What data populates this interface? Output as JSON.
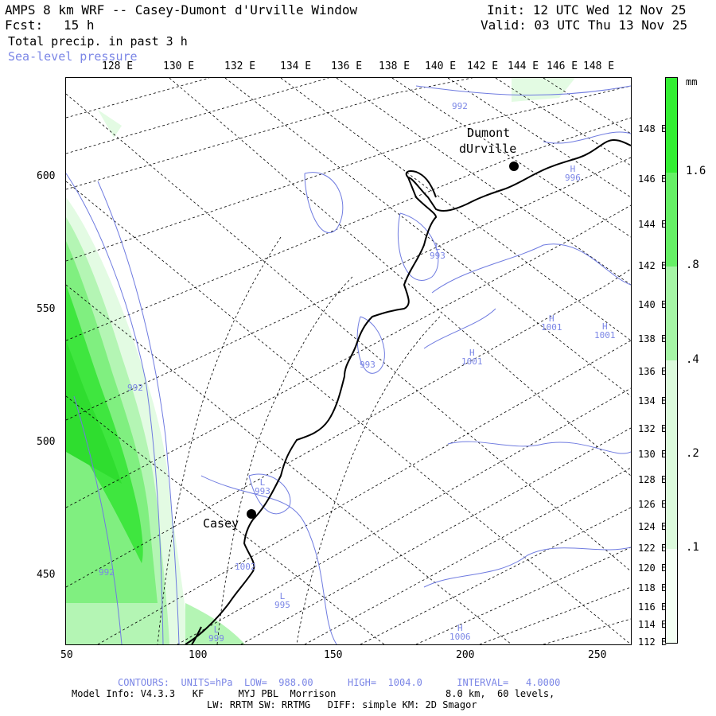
{
  "header": {
    "title": "AMPS 8 km WRF -- Casey-Dumont d'Urville Window",
    "fcst_label": "Fcst:",
    "fcst_value": "15 h",
    "field1": "Total precip. in past 3 h",
    "field2": "Sea-level pressure",
    "init": "Init: 12 UTC Wed 12 Nov 25",
    "valid": "Valid: 03 UTC Thu 13 Nov 25"
  },
  "top_lon_labels": [
    "128 E",
    "130 E",
    "132 E",
    "134 E",
    "136 E",
    "138 E",
    "140 E",
    "142 E",
    "144 E",
    "146 E",
    "148 E"
  ],
  "right_lat_labels": [
    "148 E",
    "146 E",
    "144 E",
    "142 E",
    "140 E",
    "138 E",
    "136 E",
    "134 E",
    "132 E",
    "130 E",
    "128 E",
    "126 E",
    "124 E",
    "122 E",
    "120 E",
    "118 E",
    "116 E",
    "114 E",
    "112 E"
  ],
  "y_axis_labels": [
    "600",
    "550",
    "500",
    "450"
  ],
  "x_axis_labels": [
    "50",
    "100",
    "150",
    "200",
    "250"
  ],
  "colorbar": {
    "unit": "mm",
    "labels": [
      "1.6",
      ".8",
      ".4",
      ".2",
      ".1"
    ],
    "colors": [
      "#33ee33",
      "#66f066",
      "#a6f5a6",
      "#dcfadc",
      "#f4fff4"
    ]
  },
  "places": {
    "dumont_line1": "Dumont",
    "dumont_line2": "dUrville",
    "casey": "Casey"
  },
  "pressure_labels": [
    {
      "letter": "",
      "value": "992"
    },
    {
      "letter": "H",
      "value": "996"
    },
    {
      "letter": "L",
      "value": "993"
    },
    {
      "letter": "H",
      "value": "1001"
    },
    {
      "letter": "H",
      "value": "1001"
    },
    {
      "letter": "H",
      "value": "1001"
    },
    {
      "letter": "",
      "value": "993"
    },
    {
      "letter": "",
      "value": "992"
    },
    {
      "letter": "L",
      "value": "993"
    },
    {
      "letter": "",
      "value": "992"
    },
    {
      "letter": "",
      "value": "1002"
    },
    {
      "letter": "L",
      "value": "995"
    },
    {
      "letter": "H",
      "value": "1006"
    },
    {
      "letter": "L",
      "value": "999"
    }
  ],
  "footer": {
    "contours": "CONTOURS:  UNITS=hPa  LOW=  988.00      HIGH=  1004.0      INTERVAL=   4.0000",
    "model_info": "Model Info: V4.3.3   KF      MYJ PBL  Morrison",
    "resolution": "8.0 km,  60 levels,",
    "physics": "LW: RRTM SW: RRTMG   DIFF: simple KM: 2D Smagor"
  }
}
